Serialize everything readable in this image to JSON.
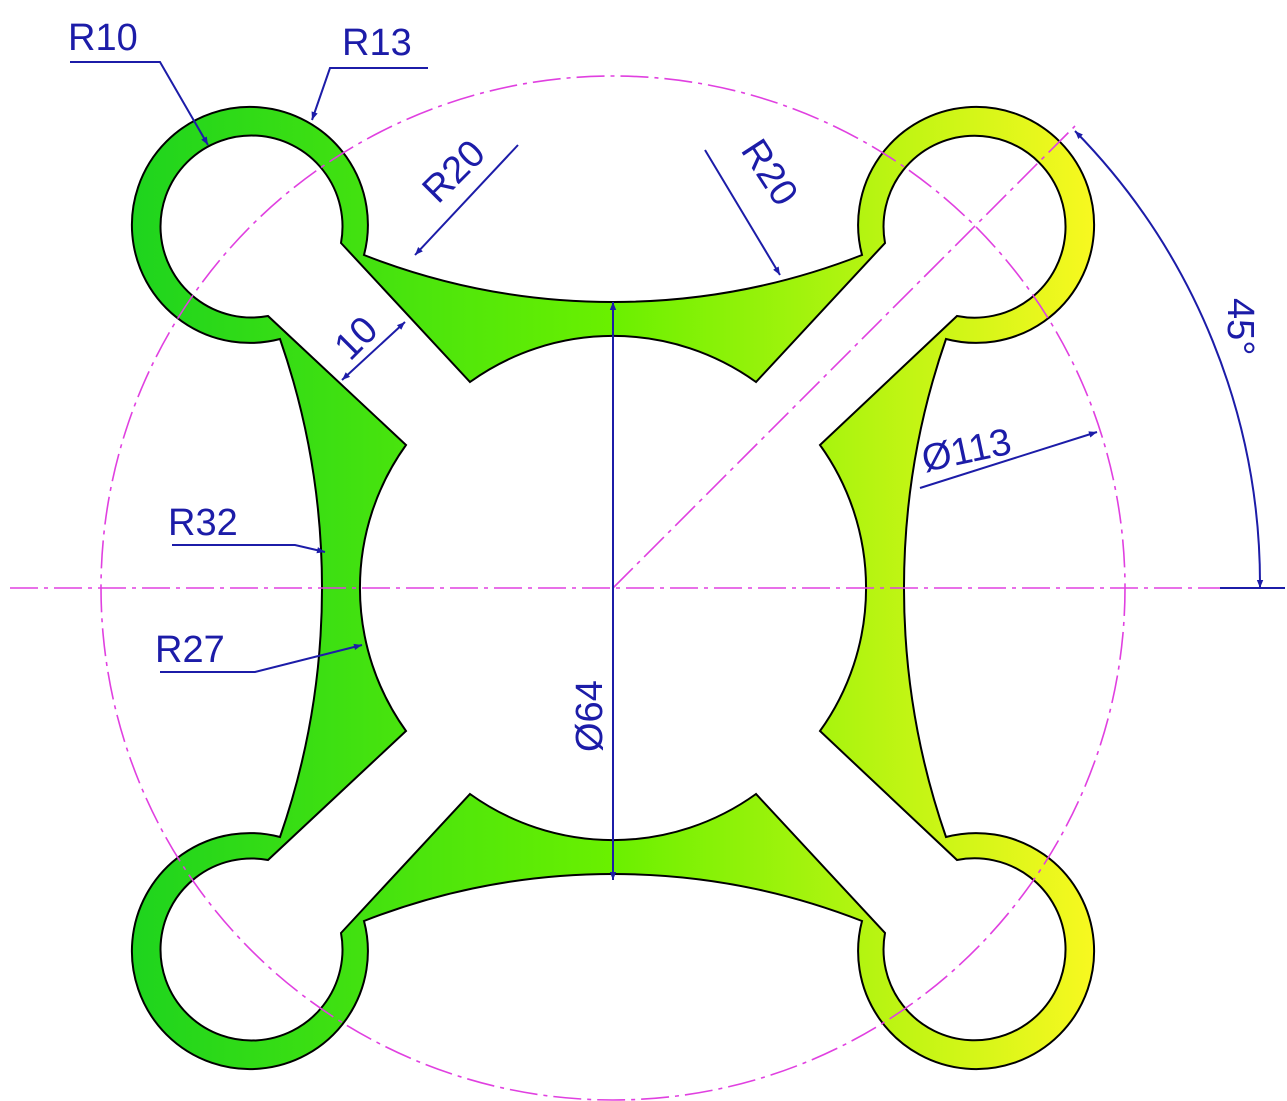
{
  "dimensions": {
    "r10": "R10",
    "r13": "R13",
    "r20_left": "R20",
    "r20_right": "R20",
    "width": "10",
    "r32": "R32",
    "r27": "R27",
    "d64": "Ø64",
    "d113": "Ø113",
    "angle": "45°"
  }
}
